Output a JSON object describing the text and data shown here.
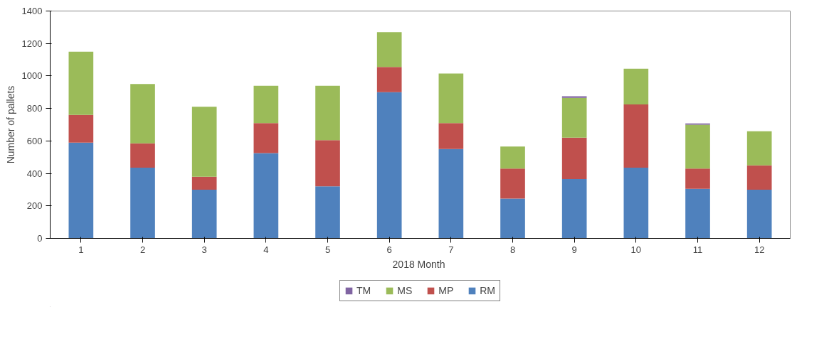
{
  "chart_data": {
    "type": "bar",
    "stacked": true,
    "xlabel": "2018  Month",
    "ylabel": "Number of pallets",
    "categories": [
      "1",
      "2",
      "3",
      "4",
      "5",
      "6",
      "7",
      "8",
      "9",
      "10",
      "11",
      "12"
    ],
    "series": [
      {
        "name": "RM",
        "color": "#4f81bd",
        "values": [
          590,
          435,
          300,
          525,
          320,
          900,
          550,
          245,
          365,
          435,
          305,
          300
        ]
      },
      {
        "name": "MP",
        "color": "#c0504d",
        "values": [
          170,
          150,
          80,
          185,
          285,
          155,
          160,
          185,
          255,
          390,
          125,
          150
        ]
      },
      {
        "name": "MS",
        "color": "#9bbb59",
        "values": [
          390,
          365,
          430,
          230,
          335,
          215,
          305,
          135,
          245,
          220,
          270,
          210
        ]
      },
      {
        "name": "TM",
        "color": "#8064a2",
        "values": [
          0,
          0,
          0,
          0,
          0,
          0,
          0,
          0,
          10,
          0,
          8,
          0
        ]
      }
    ],
    "ylim": [
      0,
      1400
    ],
    "yticks": [
      0,
      200,
      400,
      600,
      800,
      1000,
      1200,
      1400
    ],
    "grid": false,
    "legend": "bottom"
  }
}
